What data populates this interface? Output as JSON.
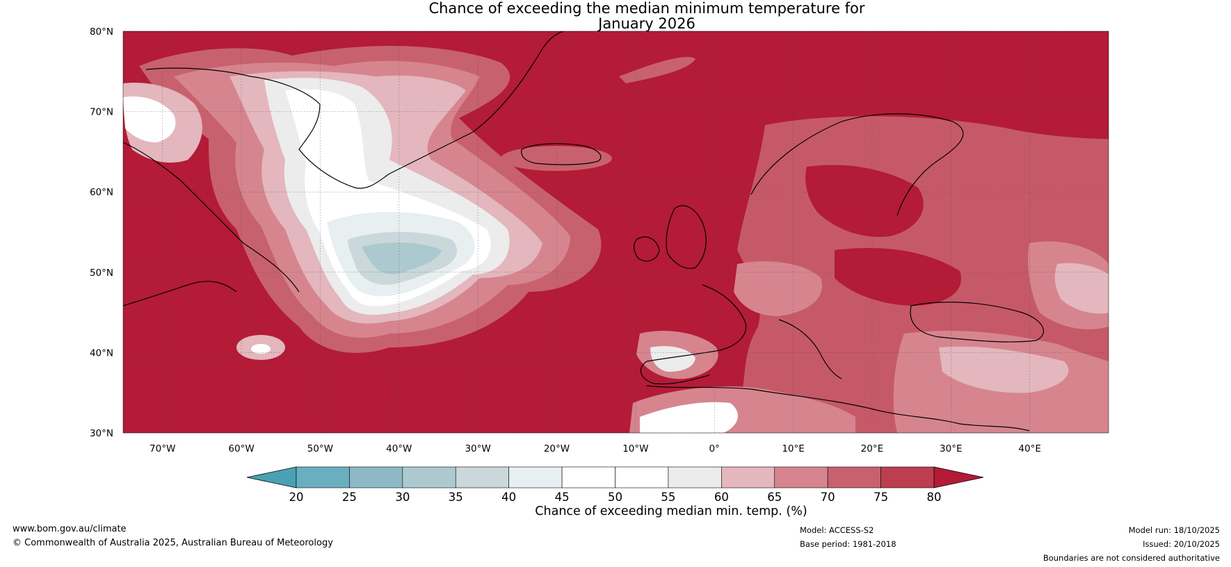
{
  "title": {
    "line1": "Chance of exceeding the median minimum temperature for",
    "line2": "January 2026"
  },
  "map": {
    "lat_labels": [
      "80°N",
      "70°N",
      "60°N",
      "50°N",
      "40°N",
      "30°N"
    ],
    "lon_labels": [
      "70°W",
      "60°W",
      "50°W",
      "40°W",
      "30°W",
      "20°W",
      "10°W",
      "0°",
      "10°E",
      "20°E",
      "30°E",
      "40°E"
    ],
    "lat_range": [
      30,
      80
    ],
    "lon_range": [
      -75,
      50
    ],
    "grid": true,
    "background_color": "#b31b37"
  },
  "colorbar": {
    "tick_labels": [
      "20",
      "25",
      "30",
      "35",
      "40",
      "45",
      "50",
      "55",
      "60",
      "65",
      "70",
      "75",
      "80"
    ],
    "colors": [
      "#4aa1b3",
      "#6aafbf",
      "#8db9c6",
      "#adc9d0",
      "#cbd8db",
      "#e7eff0",
      "#ffffff",
      "#ffffff",
      "#ececec",
      "#e3b7bd",
      "#d6858f",
      "#c8616e",
      "#bd3e4f",
      "#b31b37"
    ],
    "label": "Chance of exceeding median min. temp. (%)"
  },
  "footer": {
    "website": "www.bom.gov.au/climate",
    "copyright": "© Commonwealth of Australia 2025, Australian Bureau of Meteorology",
    "model": "Model: ACCESS-S2",
    "base_period": "Base period: 1981-2018",
    "model_run": "Model run: 18/10/2025",
    "issued": "Issued: 20/10/2025",
    "boundaries_note": "Boundaries are not considered authoritative"
  }
}
